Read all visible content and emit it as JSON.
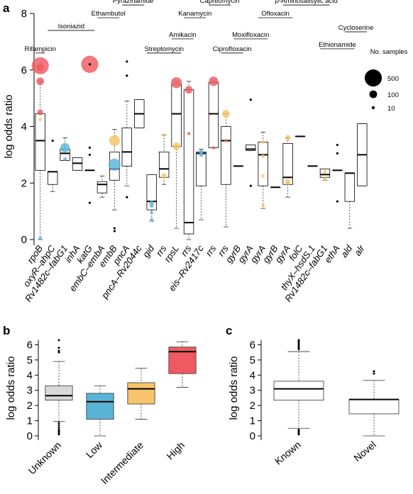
{
  "chart_data": [
    {
      "panel": "a",
      "type": "box",
      "ylabel": "log odds ratio",
      "ylim": [
        0,
        8
      ],
      "yticks": [
        0,
        2,
        4,
        6,
        8
      ],
      "categories": [
        "rpoB",
        "oxyR–ahpC",
        "Rv1482c–fabG1",
        "inhA",
        "katG",
        "embC–embA",
        "embB",
        "pncA",
        "pncA–Rv2044c",
        "gid",
        "rrs",
        "rpsL",
        "rrs",
        "eis–Rv2417c",
        "rrs",
        "rrs",
        "gyrB",
        "gyrA",
        "gyrA",
        "gyrB",
        "gyrA",
        "folC",
        "thyX–hsdS.1",
        "Rv1482c–fabG1",
        "ethA",
        "ald",
        "alr"
      ],
      "boxes": [
        {
          "q1": 2.45,
          "median": 3.5,
          "q3": 4.45,
          "wlo": 0.0,
          "whi": 5.6
        },
        {
          "q1": 1.95,
          "median": 2.4,
          "q3": 2.4,
          "wlo": 1.7,
          "whi": 2.4
        },
        {
          "q1": 2.8,
          "median": 3.05,
          "q3": 3.2,
          "wlo": 2.8,
          "whi": 3.6
        },
        {
          "q1": 2.45,
          "median": 2.7,
          "q3": 2.9,
          "wlo": 2.45,
          "whi": 2.9
        },
        {
          "q1": 2.45,
          "median": 2.45,
          "q3": 2.45,
          "wlo": 2.45,
          "whi": 2.45
        },
        {
          "q1": 1.65,
          "median": 1.95,
          "q3": 2.05,
          "wlo": 1.5,
          "whi": 2.25
        },
        {
          "q1": 2.1,
          "median": 2.5,
          "q3": 3.1,
          "wlo": 1.05,
          "whi": 3.9
        },
        {
          "q1": 2.6,
          "median": 3.1,
          "q3": 3.95,
          "wlo": 1.9,
          "whi": 4.9
        },
        {
          "q1": 3.95,
          "median": 4.45,
          "q3": 4.95,
          "wlo": 3.95,
          "whi": 4.95
        },
        {
          "q1": 1.05,
          "median": 1.35,
          "q3": 2.3,
          "wlo": 0.65,
          "whi": 2.3
        },
        {
          "q1": 2.2,
          "median": 2.5,
          "q3": 3.1,
          "wlo": 1.95,
          "whi": 3.7
        },
        {
          "q1": 3.3,
          "median": 4.45,
          "q3": 5.5,
          "wlo": 0.4,
          "whi": 5.6
        },
        {
          "q1": 0.2,
          "median": 0.6,
          "q3": 5.3,
          "wlo": 0.0,
          "whi": 5.6
        },
        {
          "q1": 1.9,
          "median": 3.05,
          "q3": 3.1,
          "wlo": 0.7,
          "whi": 3.2
        },
        {
          "q1": 3.25,
          "median": 4.45,
          "q3": 5.55,
          "wlo": 3.25,
          "whi": 5.6
        },
        {
          "q1": 1.95,
          "median": 3.5,
          "q3": 4.0,
          "wlo": 0.45,
          "whi": 4.45
        },
        {
          "q1": 2.6,
          "median": 2.6,
          "q3": 2.6,
          "wlo": 2.6,
          "whi": 2.6
        },
        {
          "q1": 3.15,
          "median": 3.2,
          "q3": 3.35,
          "wlo": 3.15,
          "whi": 3.35
        },
        {
          "q1": 1.9,
          "median": 3.0,
          "q3": 3.45,
          "wlo": 1.1,
          "whi": 3.8
        },
        {
          "q1": 1.85,
          "median": 1.85,
          "q3": 1.85,
          "wlo": 1.85,
          "whi": 1.85
        },
        {
          "q1": 1.95,
          "median": 2.2,
          "q3": 3.4,
          "wlo": 1.5,
          "whi": 3.6
        },
        {
          "q1": 3.65,
          "median": 3.65,
          "q3": 3.65,
          "wlo": 3.65,
          "whi": 3.65
        },
        {
          "q1": 2.6,
          "median": 2.6,
          "q3": 2.6,
          "wlo": 2.6,
          "whi": 2.6
        },
        {
          "q1": 2.2,
          "median": 2.3,
          "q3": 2.5,
          "wlo": 2.1,
          "whi": 2.5
        },
        {
          "q1": 2.45,
          "median": 2.45,
          "q3": 2.45,
          "wlo": 2.45,
          "whi": 2.45
        },
        {
          "q1": 1.35,
          "median": 2.35,
          "q3": 2.35,
          "wlo": 0.4,
          "whi": 2.35
        },
        {
          "q1": 1.9,
          "median": 3.0,
          "q3": 4.1,
          "wlo": 1.9,
          "whi": 4.1
        }
      ],
      "outliers": [
        {
          "cat": 4,
          "y": 6.2
        },
        {
          "cat": 4,
          "y": 3.25
        },
        {
          "cat": 4,
          "y": 3.0
        },
        {
          "cat": 4,
          "y": 1.3
        },
        {
          "cat": 1,
          "y": 3.5
        },
        {
          "cat": 6,
          "y": 0.4
        },
        {
          "cat": 6,
          "y": 0.3
        },
        {
          "cat": 7,
          "y": 6.3
        },
        {
          "cat": 7,
          "y": 5.8
        },
        {
          "cat": 7,
          "y": 1.5
        },
        {
          "cat": 17,
          "y": 4.95
        },
        {
          "cat": 17,
          "y": 1.9
        },
        {
          "cat": 24,
          "y": 3.35
        },
        {
          "cat": 24,
          "y": 3.05
        },
        {
          "cat": 24,
          "y": 1.35
        }
      ],
      "bubbles": [
        {
          "cat": 0,
          "y": 6.15,
          "level": "High",
          "n": 500
        },
        {
          "cat": 0,
          "y": 6.1,
          "level": "High",
          "n": 100
        },
        {
          "cat": 0,
          "y": 5.6,
          "level": "High",
          "n": 100
        },
        {
          "cat": 0,
          "y": 4.5,
          "level": "High",
          "n": 60
        },
        {
          "cat": 0,
          "y": 4.25,
          "level": "Intermediate",
          "n": 20
        },
        {
          "cat": 0,
          "y": 0.05,
          "level": "Low",
          "n": 10
        },
        {
          "cat": 2,
          "y": 3.25,
          "level": "Low",
          "n": 150
        },
        {
          "cat": 2,
          "y": 2.85,
          "level": "Low",
          "n": 20
        },
        {
          "cat": 4,
          "y": 6.2,
          "level": "High",
          "n": 500
        },
        {
          "cat": 6,
          "y": 3.5,
          "level": "Intermediate",
          "n": 200
        },
        {
          "cat": 6,
          "y": 2.65,
          "level": "Low",
          "n": 250
        },
        {
          "cat": 9,
          "y": 1.3,
          "level": "Low",
          "n": 30
        },
        {
          "cat": 9,
          "y": 1.2,
          "level": "Low",
          "n": 30
        },
        {
          "cat": 9,
          "y": 0.95,
          "level": "Low",
          "n": 10
        },
        {
          "cat": 9,
          "y": 0.7,
          "level": "Low",
          "n": 20
        },
        {
          "cat": 10,
          "y": 3.7,
          "level": "Intermediate",
          "n": 20
        },
        {
          "cat": 10,
          "y": 2.25,
          "level": "Intermediate",
          "n": 50
        },
        {
          "cat": 11,
          "y": 5.55,
          "level": "High",
          "n": 200
        },
        {
          "cat": 11,
          "y": 3.3,
          "level": "Intermediate",
          "n": 100
        },
        {
          "cat": 12,
          "y": 5.3,
          "level": "High",
          "n": 100
        },
        {
          "cat": 12,
          "y": 3.75,
          "level": "High",
          "n": 10
        },
        {
          "cat": 13,
          "y": 3.1,
          "level": "Low",
          "n": 30
        },
        {
          "cat": 13,
          "y": 3.0,
          "level": "Low",
          "n": 30
        },
        {
          "cat": 14,
          "y": 5.6,
          "level": "High",
          "n": 150
        },
        {
          "cat": 14,
          "y": 3.25,
          "level": "High",
          "n": 10
        },
        {
          "cat": 15,
          "y": 4.45,
          "level": "Intermediate",
          "n": 100
        },
        {
          "cat": 15,
          "y": 3.5,
          "level": "High",
          "n": 10
        },
        {
          "cat": 18,
          "y": 3.45,
          "level": "Intermediate",
          "n": 20
        },
        {
          "cat": 18,
          "y": 2.95,
          "level": "Intermediate",
          "n": 20
        },
        {
          "cat": 18,
          "y": 2.25,
          "level": "Intermediate",
          "n": 20
        },
        {
          "cat": 18,
          "y": 1.2,
          "level": "Intermediate",
          "n": 20
        },
        {
          "cat": 20,
          "y": 3.6,
          "level": "Intermediate",
          "n": 50
        },
        {
          "cat": 20,
          "y": 2.05,
          "level": "Intermediate",
          "n": 50
        },
        {
          "cat": 20,
          "y": 2.0,
          "level": "Intermediate",
          "n": 20
        },
        {
          "cat": 23,
          "y": 2.4,
          "level": "Intermediate",
          "n": 20
        },
        {
          "cat": 23,
          "y": 2.15,
          "level": "Intermediate",
          "n": 20
        }
      ],
      "drugs": [
        {
          "name": "Rifampicin",
          "start": 0,
          "end": 1,
          "row": 6.6
        },
        {
          "name": "Isoniazid",
          "start": 1,
          "end": 5,
          "row": 7.4
        },
        {
          "name": "Ethambutol",
          "start": 5,
          "end": 7,
          "row": 7.85
        },
        {
          "name": "Pyrazinamide",
          "start": 7,
          "end": 9,
          "row": 8.3
        },
        {
          "name": "Streptomycin",
          "start": 9,
          "end": 12,
          "row": 6.6
        },
        {
          "name": "Amikacin",
          "start": 11,
          "end": 13,
          "row": 7.1
        },
        {
          "name": "Kanamycin",
          "start": 12,
          "end": 14,
          "row": 7.85
        },
        {
          "name": "Capreomycin",
          "start": 14,
          "end": 16,
          "row": 8.3
        },
        {
          "name": "Ciprofloxacin",
          "start": 15,
          "end": 17,
          "row": 6.6
        },
        {
          "name": "Moxifloxacin",
          "start": 16,
          "end": 19,
          "row": 7.1
        },
        {
          "name": "Ofloxacin",
          "start": 18,
          "end": 21,
          "row": 7.85
        },
        {
          "name": "p-Aminosalisylic acid",
          "start": 20,
          "end": 24,
          "row": 8.3
        },
        {
          "name": "Ethionamide",
          "start": 23,
          "end": 26,
          "row": 6.75
        },
        {
          "name": "Cycloserine",
          "start": 25,
          "end": 27,
          "row": 7.35
        }
      ],
      "legend": {
        "title": "No. samples",
        "entries": [
          {
            "n": 500,
            "label": "500"
          },
          {
            "n": 100,
            "label": "100"
          },
          {
            "n": 10,
            "label": "10"
          }
        ]
      }
    },
    {
      "panel": "b",
      "type": "box",
      "ylabel": "log odds ratio",
      "ylim": [
        0,
        6.3
      ],
      "yticks": [
        0,
        1,
        2,
        3,
        4,
        5,
        6
      ],
      "categories": [
        "Unknown",
        "Low",
        "Intermediate",
        "High"
      ],
      "colors": [
        "#d9d9d9",
        "#5ab4d6",
        "#f8c36a",
        "#ee5a5f"
      ],
      "boxes": [
        {
          "q1": 2.35,
          "median": 2.65,
          "q3": 3.3,
          "wlo": 0.95,
          "whi": 4.9
        },
        {
          "q1": 1.1,
          "median": 2.25,
          "q3": 2.8,
          "wlo": 0.0,
          "whi": 3.3
        },
        {
          "q1": 2.1,
          "median": 3.1,
          "q3": 3.5,
          "wlo": 1.1,
          "whi": 4.45
        },
        {
          "q1": 4.1,
          "median": 5.55,
          "q3": 5.85,
          "wlo": 3.2,
          "whi": 6.2
        }
      ],
      "outliers": [
        {
          "cat": 0,
          "y": 6.3
        },
        {
          "cat": 0,
          "y": 5.8
        },
        {
          "cat": 0,
          "y": 5.6
        },
        {
          "cat": 0,
          "y": 5.5
        },
        {
          "cat": 0,
          "y": 0.85
        },
        {
          "cat": 0,
          "y": 0.7
        },
        {
          "cat": 0,
          "y": 0.55
        },
        {
          "cat": 0,
          "y": 0.4
        },
        {
          "cat": 0,
          "y": 0.3
        },
        {
          "cat": 0,
          "y": 0.2
        },
        {
          "cat": 0,
          "y": 0.1
        }
      ]
    },
    {
      "panel": "c",
      "type": "box",
      "ylabel": "log odds ratio",
      "ylim": [
        0,
        6.3
      ],
      "yticks": [
        0,
        1,
        2,
        3,
        4,
        5,
        6
      ],
      "categories": [
        "Known",
        "Novel"
      ],
      "boxes": [
        {
          "q1": 2.35,
          "median": 3.1,
          "q3": 3.6,
          "wlo": 0.5,
          "whi": 5.55
        },
        {
          "q1": 1.45,
          "median": 2.4,
          "q3": 2.4,
          "wlo": 0.0,
          "whi": 3.65
        }
      ],
      "outliers": [
        {
          "cat": 0,
          "y": 6.3
        },
        {
          "cat": 0,
          "y": 6.2
        },
        {
          "cat": 0,
          "y": 6.1
        },
        {
          "cat": 0,
          "y": 6.0
        },
        {
          "cat": 0,
          "y": 5.9
        },
        {
          "cat": 0,
          "y": 5.8
        },
        {
          "cat": 0,
          "y": 5.7
        },
        {
          "cat": 0,
          "y": 0.4
        },
        {
          "cat": 0,
          "y": 0.3
        },
        {
          "cat": 0,
          "y": 0.2
        },
        {
          "cat": 0,
          "y": 0.1
        },
        {
          "cat": 1,
          "y": 4.25
        },
        {
          "cat": 1,
          "y": 4.1
        }
      ]
    }
  ],
  "colors": {
    "High": "#ee5a5f",
    "Intermediate": "#f8c36a",
    "Low": "#5ab4d6",
    "Unknown": "#d9d9d9"
  },
  "panels": {
    "a": "a",
    "b": "b",
    "c": "c"
  }
}
